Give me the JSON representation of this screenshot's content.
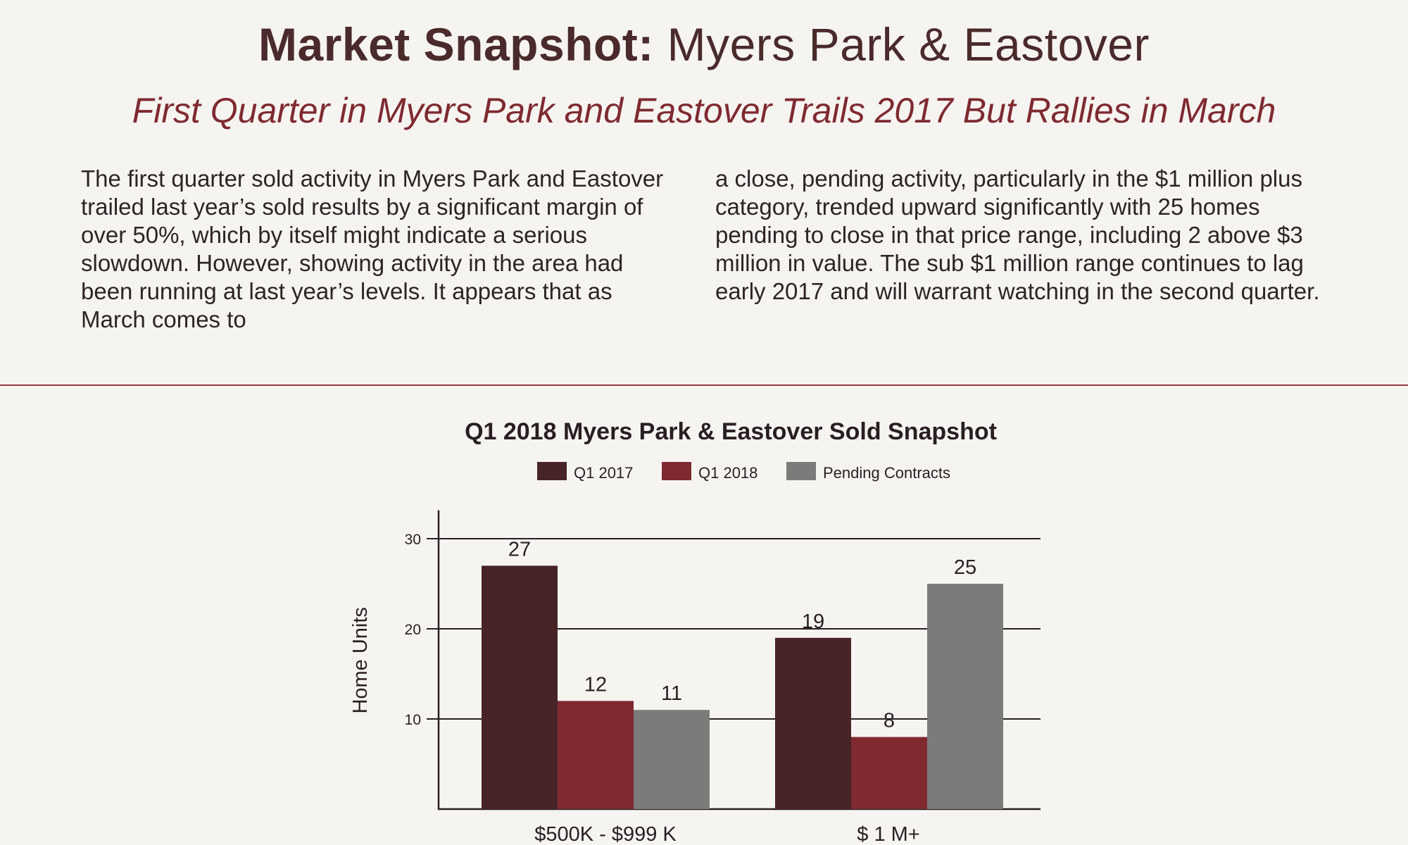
{
  "header": {
    "title_bold": "Market Snapshot:",
    "title_rest": " Myers Park & Eastover",
    "subtitle": "First Quarter in Myers Park and Eastover Trails 2017 But Rallies in March"
  },
  "body": {
    "text": "The first quarter sold activity in Myers Park and Eastover trailed last year’s sold results by a significant margin of over 50%, which by itself might indicate a serious slowdown. However, showing activity in the area had been running at last year’s levels. It appears that as March comes to a close, pending activity, particularly in the $1 million plus category, trended upward significantly with 25 homes pending to close in that price range, including 2 above $3 million in value. The sub $1 million range continues to lag early 2017 and will warrant watching in the second quarter.",
    "column_left": "The first quarter sold activity in Myers Park and Eastover trailed last year’s sold results by a significant margin of over 50%, which by itself might indicate a serious slowdown. However, showing activity in the area had been running at last year’s levels. It appears that as March comes to",
    "column_right": "a close, pending activity, particularly in the $1 million plus category, trended upward significantly with 25 homes pending to close in that price range, including 2 above $3 million in value. The sub $1 million range continues to lag early 2017 and will warrant watching in the second quarter."
  },
  "chart_data": {
    "type": "bar",
    "title": "Q1 2018 Myers Park & Eastover Sold Snapshot",
    "xlabel": "",
    "ylabel": "Home Units",
    "categories": [
      "$500K - $999 K",
      "$ 1 M+"
    ],
    "series": [
      {
        "name": "Q1 2017",
        "values": [
          27,
          19
        ],
        "color": "#472527"
      },
      {
        "name": "Q1 2018",
        "values": [
          12,
          8
        ],
        "color": "#7f2a31"
      },
      {
        "name": "Pending Contracts",
        "values": [
          11,
          25
        ],
        "color": "#7b7c7a"
      }
    ],
    "ylim": [
      0,
      33
    ],
    "yticks": [
      10,
      20,
      30
    ],
    "grid": true,
    "legend": "top-center",
    "data_labels": true
  }
}
